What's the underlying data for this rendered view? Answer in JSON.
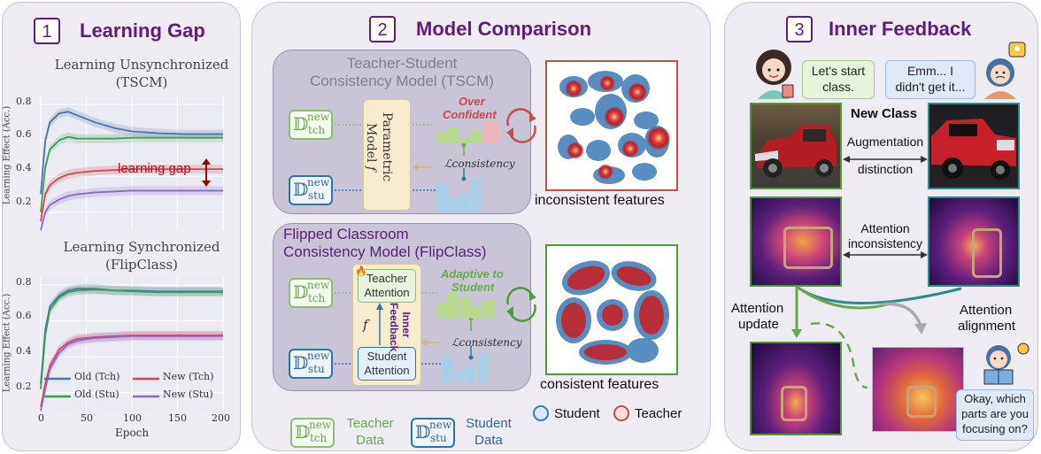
{
  "panel1": {
    "number": "1",
    "title": "Learning Gap",
    "chart_top": {
      "title_line1": "Learning Unsynchronized",
      "title_line2": "(TSCM)",
      "ylabel": "Learning Effect (Acc.)",
      "yticks": [
        "0.8",
        "0.6",
        "0.4",
        "0.2"
      ],
      "annotation": "learning gap"
    },
    "chart_bottom": {
      "title_line1": "Learning Synchronized",
      "title_line2": "(FlipClass)",
      "ylabel": "Learning Effect (Acc.)",
      "yticks": [
        "0.8",
        "0.6",
        "0.4",
        "0.2"
      ],
      "xticks": [
        "0",
        "50",
        "100",
        "150",
        "200"
      ],
      "xlabel": "Epoch"
    },
    "legend": [
      "Old (Tch)",
      "New (Tch)",
      "Old (Stu)",
      "New (Stu)"
    ]
  },
  "chart_data": [
    {
      "type": "line",
      "title": "Learning Unsynchronized (TSCM)",
      "xlabel": "",
      "ylabel": "Learning Effect (Acc.)",
      "xlim": [
        0,
        200
      ],
      "ylim": [
        0.1,
        0.85
      ],
      "x": [
        0,
        5,
        10,
        20,
        30,
        40,
        60,
        80,
        100,
        130,
        160,
        200
      ],
      "series": [
        {
          "name": "Old (Tch)",
          "color": "#4c72b0",
          "values": [
            0.3,
            0.6,
            0.7,
            0.75,
            0.76,
            0.74,
            0.7,
            0.67,
            0.65,
            0.64,
            0.635,
            0.635
          ]
        },
        {
          "name": "Old (Stu)",
          "color": "#3a9d55",
          "values": [
            0.2,
            0.45,
            0.55,
            0.6,
            0.62,
            0.61,
            0.61,
            0.61,
            0.615,
            0.615,
            0.615,
            0.615
          ]
        },
        {
          "name": "New (Tch)",
          "color": "#d64550",
          "values": [
            0.15,
            0.3,
            0.35,
            0.39,
            0.41,
            0.42,
            0.43,
            0.435,
            0.44,
            0.44,
            0.44,
            0.44
          ]
        },
        {
          "name": "New (Stu)",
          "color": "#8c6bc8",
          "values": [
            0.1,
            0.2,
            0.24,
            0.27,
            0.29,
            0.3,
            0.31,
            0.315,
            0.32,
            0.32,
            0.32,
            0.32
          ]
        }
      ]
    },
    {
      "type": "line",
      "title": "Learning Synchronized (FlipClass)",
      "xlabel": "Epoch",
      "ylabel": "Learning Effect (Acc.)",
      "xlim": [
        0,
        200
      ],
      "ylim": [
        0.1,
        0.85
      ],
      "x": [
        0,
        5,
        10,
        20,
        30,
        40,
        60,
        80,
        100,
        130,
        160,
        200
      ],
      "series": [
        {
          "name": "Old (Tch)",
          "color": "#4c72b0",
          "values": [
            0.25,
            0.55,
            0.68,
            0.74,
            0.77,
            0.78,
            0.78,
            0.77,
            0.77,
            0.765,
            0.765,
            0.765
          ]
        },
        {
          "name": "Old (Stu)",
          "color": "#3a9d55",
          "values": [
            0.22,
            0.52,
            0.66,
            0.73,
            0.76,
            0.77,
            0.775,
            0.77,
            0.765,
            0.76,
            0.76,
            0.76
          ]
        },
        {
          "name": "New (Tch)",
          "color": "#d64550",
          "values": [
            0.12,
            0.25,
            0.35,
            0.44,
            0.48,
            0.5,
            0.51,
            0.515,
            0.52,
            0.52,
            0.52,
            0.52
          ]
        },
        {
          "name": "New (Stu)",
          "color": "#8c6bc8",
          "values": [
            0.1,
            0.22,
            0.33,
            0.42,
            0.47,
            0.49,
            0.505,
            0.51,
            0.515,
            0.515,
            0.515,
            0.515
          ]
        }
      ]
    }
  ],
  "panel2": {
    "number": "2",
    "title": "Model Comparison",
    "tscm_title_line1": "Teacher-Student",
    "tscm_title_line2": "Consistency Model (TSCM)",
    "tch_data_label": "𝔻",
    "tch_sup": "new",
    "tch_sub": "tch",
    "stu_sub": "stu",
    "parametric_line1": "Parametric",
    "parametric_line2": "Model 𝑓",
    "over_line1": "Over",
    "over_line2": "Confident",
    "consistency": "ℒconsistency",
    "inconsistent_caption": "inconsistent features",
    "flip_title_line1": "Flipped Classroom",
    "flip_title_line2": "Consistency Model (FlipClass)",
    "teacher_attention_line1": "Teacher",
    "teacher_attention_line2": "Attention",
    "student_attention_line1": "Student",
    "student_attention_line2": "Attention",
    "inner_feedback_line1": "Inner",
    "inner_feedback_line2": "Feedback",
    "f_label": "𝑓",
    "adaptive_line1": "Adaptive to",
    "adaptive_line2": "Student",
    "consistent_caption": "consistent features",
    "legend_student": "Student",
    "legend_teacher": "Teacher",
    "teacher_data_line1": "Teacher",
    "teacher_data_line2": "Data",
    "student_data_line1": "Student",
    "student_data_line2": "Data"
  },
  "panel3": {
    "number": "3",
    "title": "Inner Feedback",
    "bubble_teacher_line1": "Let's start",
    "bubble_teacher_line2": "class.",
    "bubble_student_line1": "Emm... I",
    "bubble_student_line2": "didn't get it...",
    "new_class": "New Class",
    "augmentation_line1": "Augmentation",
    "augmentation_line2": "distinction",
    "attn_incons_line1": "Attention",
    "attn_incons_line2": "inconsistency",
    "attn_update_line1": "Attention",
    "attn_update_line2": "update",
    "attn_align_line1": "Attention",
    "attn_align_line2": "alignment",
    "bubble_focus_line1": "Okay, which",
    "bubble_focus_line2": "parts are you",
    "bubble_focus_line3": "focusing on?"
  }
}
